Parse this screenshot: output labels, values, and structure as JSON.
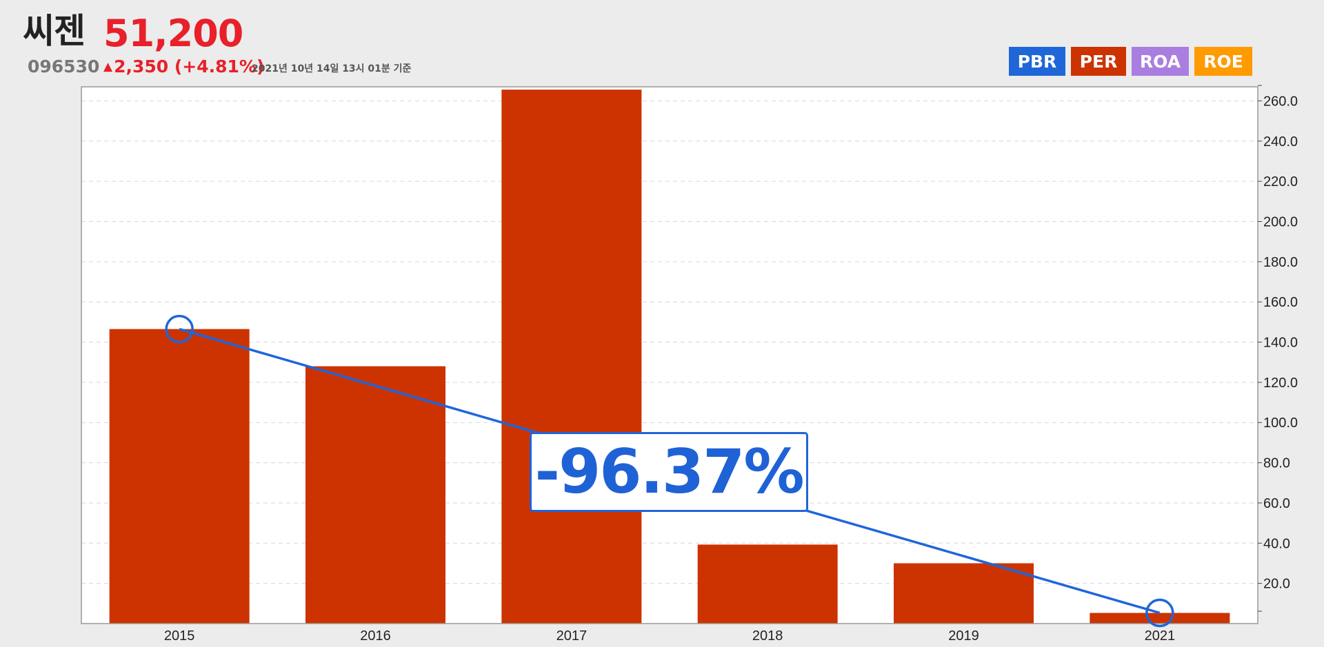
{
  "header": {
    "company_name": "씨젠",
    "price": "51,200",
    "code": "096530",
    "change_arrow": "▲",
    "change_text": "2,350 (+4.81%)",
    "as_of": "2021년 10년 14일 13시 01분 기준"
  },
  "legend": [
    {
      "label": "PBR",
      "color": "#1f66d9"
    },
    {
      "label": "PER",
      "color": "#cc3300"
    },
    {
      "label": "ROA",
      "color": "#aa7ee0"
    },
    {
      "label": "ROE",
      "color": "#ff9a00"
    }
  ],
  "callout": {
    "text": "-96.37%"
  },
  "chart_data": {
    "type": "bar",
    "categories": [
      "2015",
      "2016",
      "2017",
      "2018",
      "2019",
      "2021"
    ],
    "series": [
      {
        "values": [
          146.5,
          128.0,
          265.6,
          39.3,
          30.0,
          5.3
        ],
        "color": "#cc3300"
      }
    ],
    "trend_line": {
      "from_category": "2015",
      "to_category": "2021",
      "from_value": 146.5,
      "to_value": 5.3,
      "color": "#1f66d9",
      "change_label": "-96.37%"
    },
    "yticks": [
      "20.0",
      "40.0",
      "60.0",
      "80.0",
      "100.0",
      "120.0",
      "140.0",
      "160.0",
      "180.0",
      "200.0",
      "220.0",
      "240.0",
      "260.0"
    ],
    "ylim": [
      0,
      267
    ],
    "axis_position": "right",
    "grid": true
  }
}
